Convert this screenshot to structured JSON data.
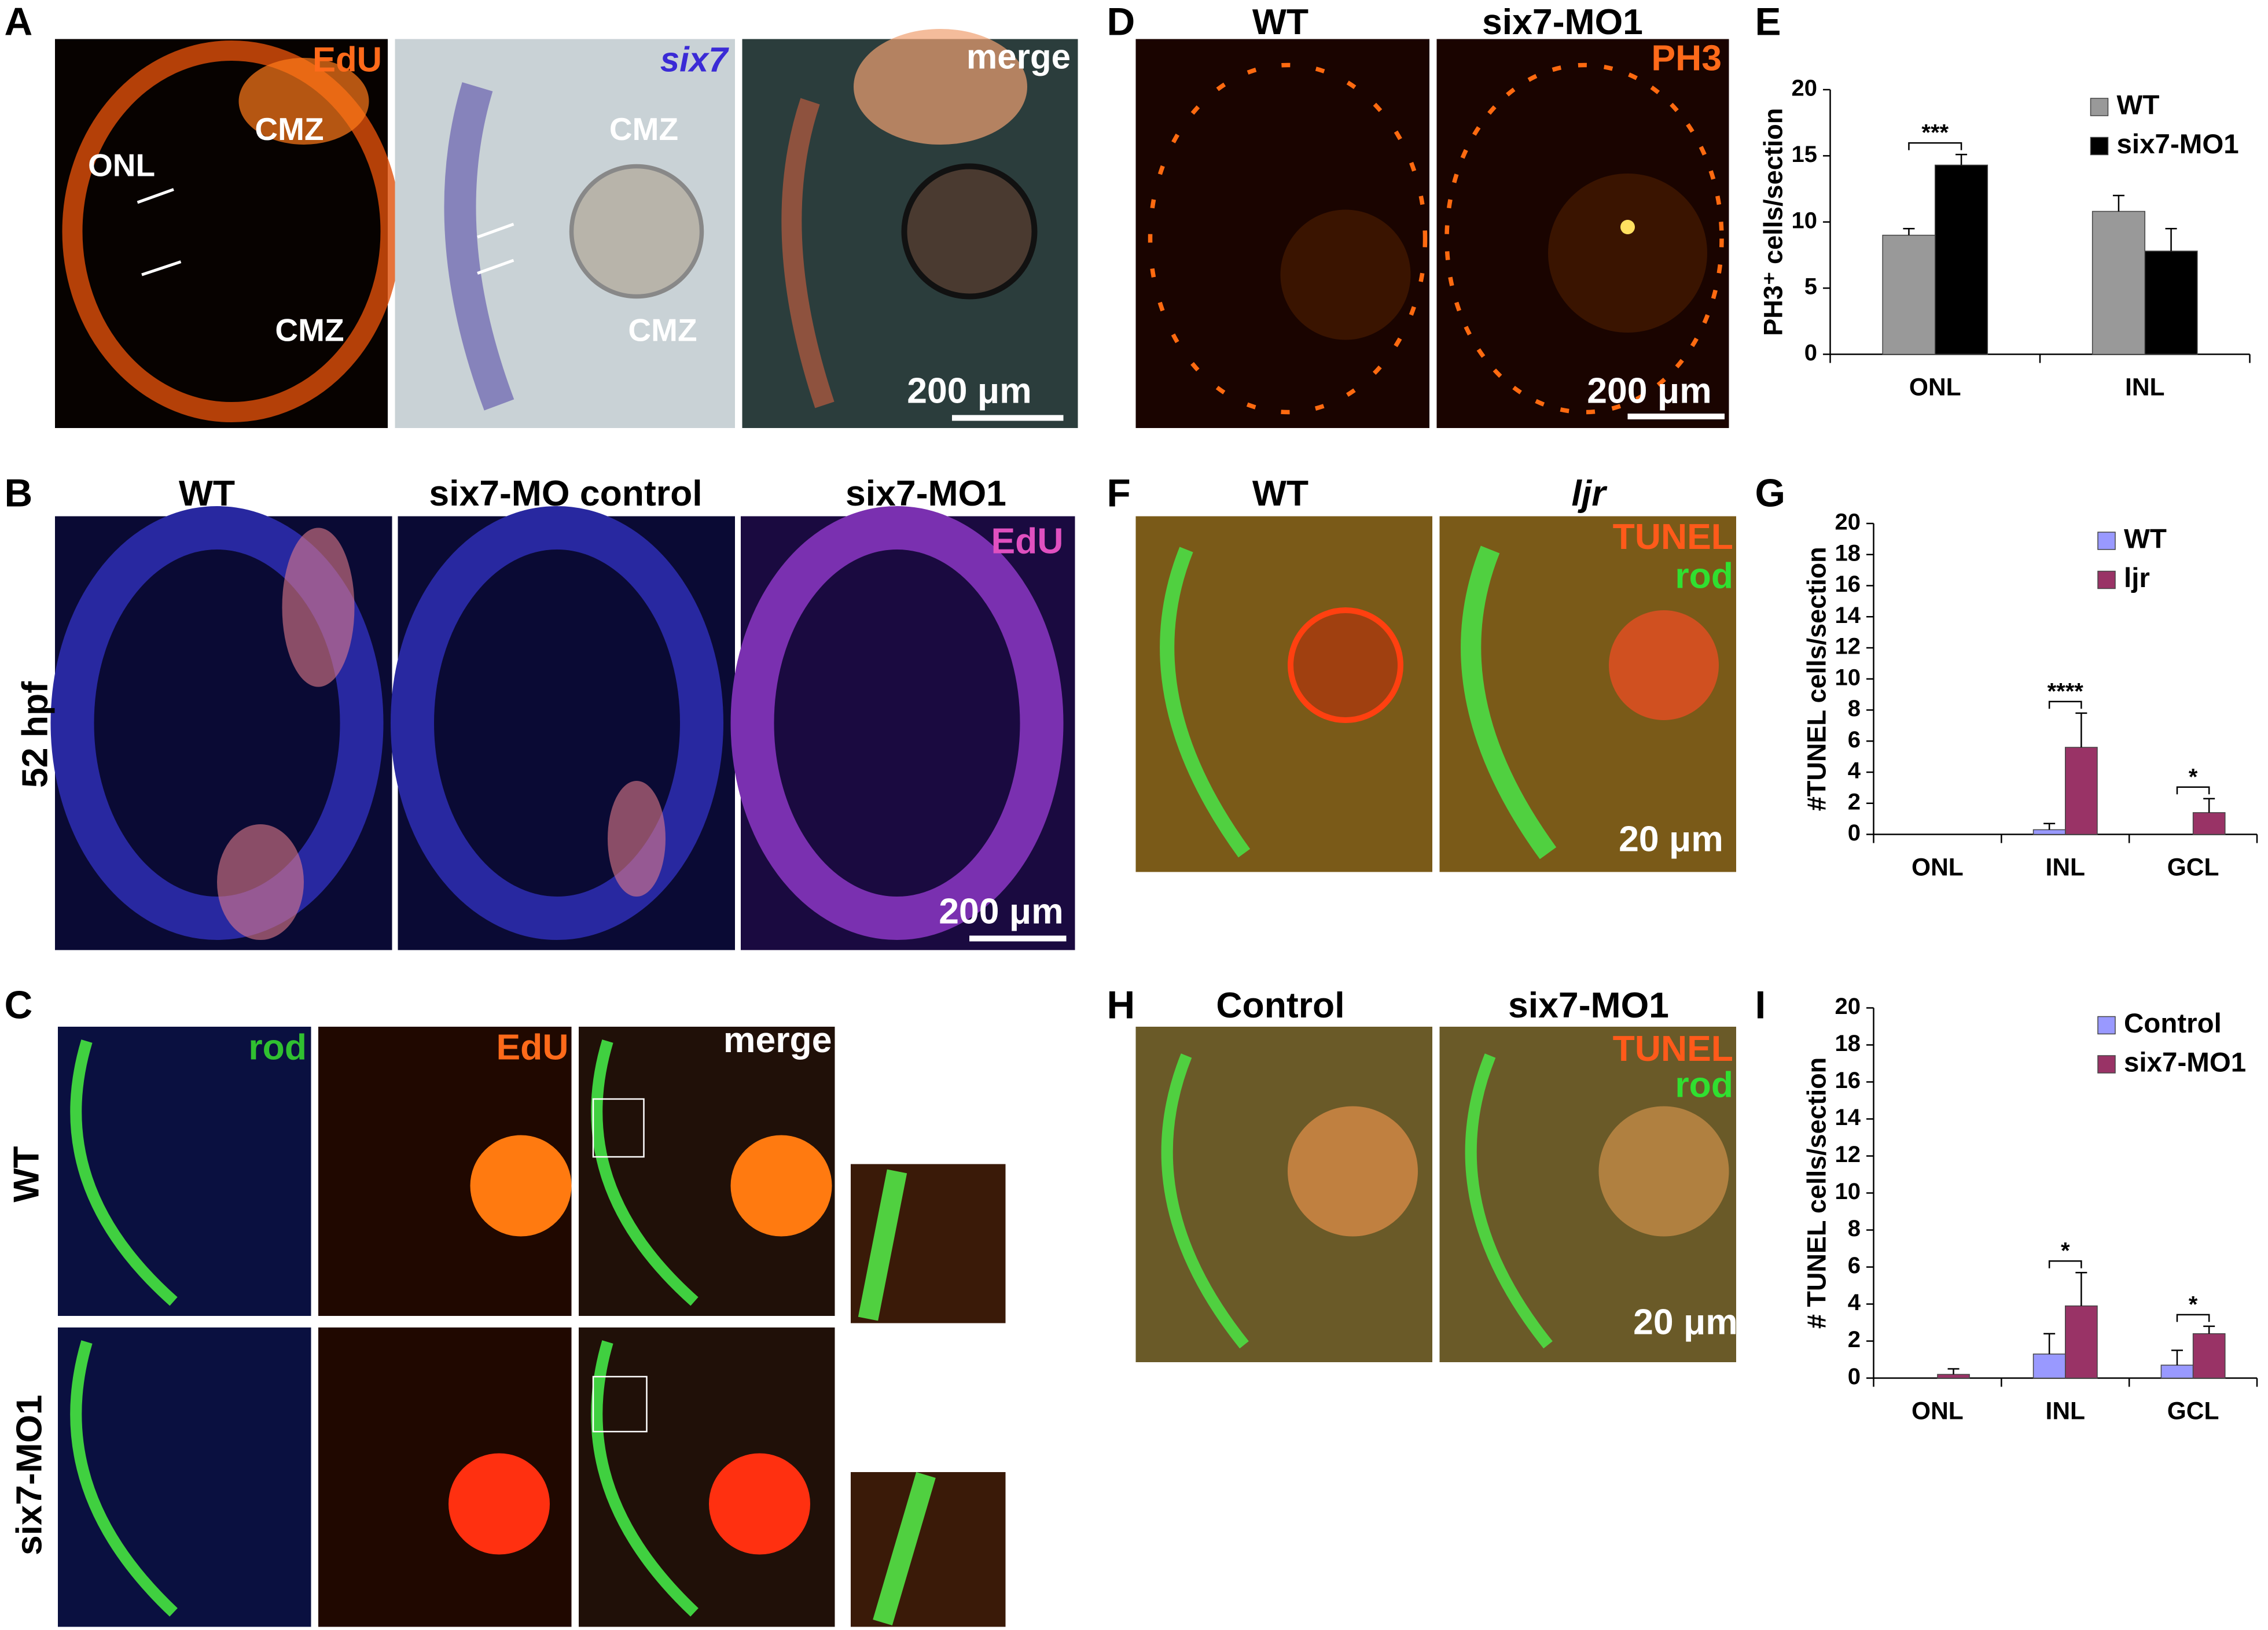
{
  "A": {
    "letter": "A",
    "edu_label": "EdU",
    "edu_layers": [
      "CMZ",
      "ONL",
      "CMZ"
    ],
    "six7_label": "six7",
    "six7_layers": [
      "CMZ",
      "CMZ"
    ],
    "merge_label": "merge",
    "scale_bar": "200 μm"
  },
  "B": {
    "letter": "B",
    "columns": [
      "WT",
      "six7-MO control",
      "six7-MO1"
    ],
    "stain": "EdU",
    "stage": "52 hpf",
    "scale_bar": "200 μm"
  },
  "C": {
    "letter": "C",
    "columns": [
      "rod",
      "EdU",
      "merge"
    ],
    "rows": [
      "WT",
      "six7-MO1"
    ]
  },
  "D": {
    "letter": "D",
    "columns": [
      "WT",
      "six7-MO1"
    ],
    "stain": "PH3",
    "scale_bar": "200 μm"
  },
  "F": {
    "letter": "F",
    "columns": [
      "WT",
      "ljr"
    ],
    "stains": [
      "TUNEL",
      "rod"
    ],
    "scale_bar": "20 μm"
  },
  "H": {
    "letter": "H",
    "columns": [
      "Control",
      "six7-MO1"
    ],
    "stains": [
      "TUNEL",
      "rod"
    ],
    "scale_bar": "20 μm"
  },
  "chart_data": [
    {
      "type": "bar",
      "letter": "E",
      "ylabel": "PH3⁺ cells/section",
      "categories": [
        "ONL",
        "INL"
      ],
      "series": [
        {
          "name": "WT",
          "color": "#999999",
          "values": [
            9,
            10.8
          ],
          "errors": [
            0.5,
            1.2
          ]
        },
        {
          "name": "six7-MO1",
          "color": "#000000",
          "values": [
            14.3,
            7.8
          ],
          "errors": [
            0.8,
            1.7
          ]
        }
      ],
      "significance": [
        "***",
        null
      ],
      "ylim": [
        0,
        20
      ],
      "yticks": [
        0,
        5,
        10,
        15,
        20
      ],
      "legend": "upper right"
    },
    {
      "type": "bar",
      "letter": "G",
      "ylabel": "#TUNEL cells/section",
      "categories": [
        "ONL",
        "INL",
        "GCL"
      ],
      "series": [
        {
          "name": "WT",
          "color": "#9999ff",
          "values": [
            0,
            0.3,
            0
          ],
          "errors": [
            null,
            0.4,
            null
          ]
        },
        {
          "name": "ljr",
          "color": "#993366",
          "values": [
            0,
            5.6,
            1.4
          ],
          "errors": [
            null,
            2.2,
            0.9
          ]
        }
      ],
      "significance": [
        null,
        "****",
        "*"
      ],
      "ylim": [
        0,
        20
      ],
      "yticks": [
        0,
        2,
        4,
        6,
        8,
        10,
        12,
        14,
        16,
        18,
        20
      ],
      "legend": "upper right"
    },
    {
      "type": "bar",
      "letter": "I",
      "ylabel": "# TUNEL cells/section",
      "categories": [
        "ONL",
        "INL",
        "GCL"
      ],
      "series": [
        {
          "name": "Control",
          "color": "#9999ff",
          "values": [
            0,
            1.3,
            0.7
          ],
          "errors": [
            null,
            1.1,
            0.8
          ]
        },
        {
          "name": "six7-MO1",
          "color": "#993366",
          "values": [
            0.2,
            3.9,
            2.4
          ],
          "errors": [
            0.3,
            1.8,
            0.4
          ]
        }
      ],
      "significance": [
        null,
        "*",
        "*"
      ],
      "ylim": [
        0,
        20
      ],
      "yticks": [
        0,
        2,
        4,
        6,
        8,
        10,
        12,
        14,
        16,
        18,
        20
      ],
      "legend": "upper right"
    }
  ]
}
